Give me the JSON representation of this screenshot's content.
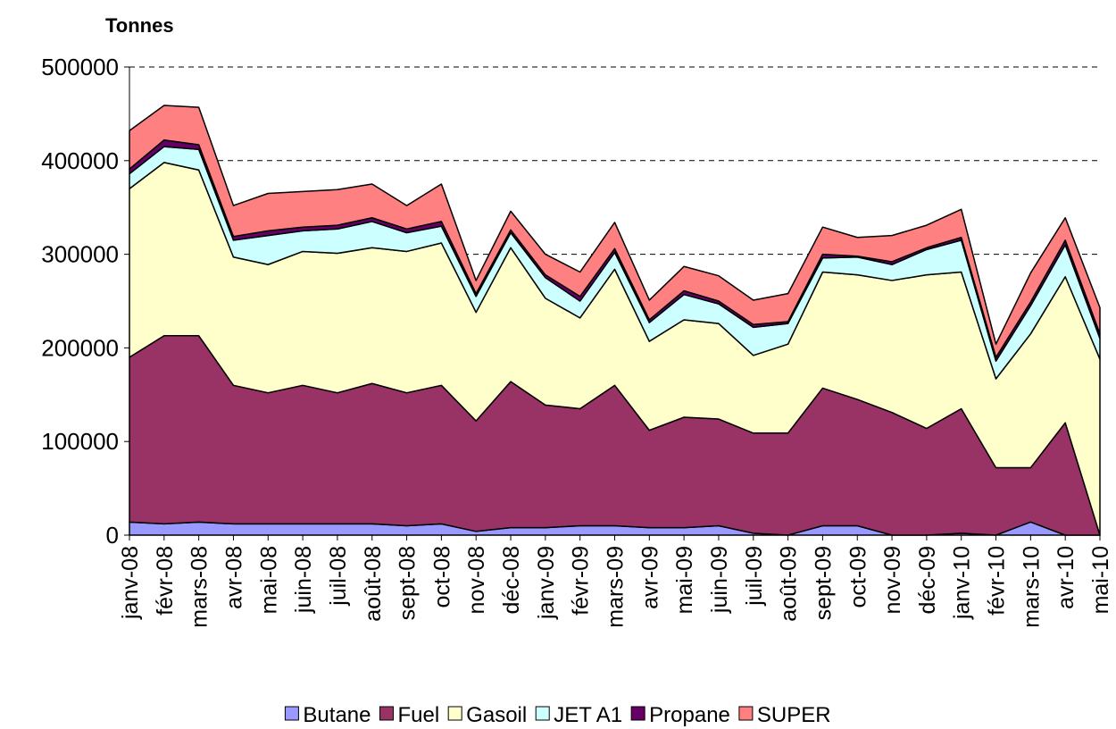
{
  "chart_data": {
    "type": "stacked_area",
    "title": "Tonnes",
    "categories": [
      "janv-08",
      "févr-08",
      "mars-08",
      "avr-08",
      "mai-08",
      "juin-08",
      "juil-08",
      "août-08",
      "sept-08",
      "oct-08",
      "nov-08",
      "déc-08",
      "janv-09",
      "févr-09",
      "mars-09",
      "avr-09",
      "mai-09",
      "juin-09",
      "juil-09",
      "août-09",
      "sept-09",
      "oct-09",
      "nov-09",
      "déc-09",
      "janv-10",
      "févr-10",
      "mars-10",
      "avr-10",
      "mai-10"
    ],
    "series": [
      {
        "name": "Butane",
        "color": "#9999ff",
        "values": [
          14000,
          12000,
          14000,
          12000,
          12000,
          12000,
          12000,
          12000,
          10000,
          12000,
          4000,
          8000,
          8000,
          10000,
          10000,
          8000,
          8000,
          10000,
          2000,
          0,
          10000,
          10000,
          0,
          0,
          2000,
          0,
          14000,
          0,
          0
        ]
      },
      {
        "name": "Fuel",
        "color": "#993366",
        "values": [
          176000,
          201000,
          199000,
          148000,
          140000,
          148000,
          140000,
          150000,
          142000,
          148000,
          118000,
          156000,
          131000,
          125000,
          150000,
          104000,
          118000,
          114000,
          107000,
          109000,
          147000,
          135000,
          131000,
          114000,
          133000,
          72000,
          58000,
          120000,
          0
        ]
      },
      {
        "name": "Gasoil",
        "color": "#ffffcc",
        "values": [
          180000,
          185000,
          177000,
          137000,
          137000,
          143000,
          149000,
          145000,
          151000,
          152000,
          116000,
          143000,
          114000,
          97000,
          124000,
          95000,
          104000,
          102000,
          83000,
          95000,
          124000,
          133000,
          141000,
          164000,
          146000,
          95000,
          143000,
          156000,
          188000
        ]
      },
      {
        "name": "JET A1",
        "color": "#ccffff",
        "values": [
          16000,
          17000,
          22000,
          18000,
          31000,
          22000,
          26000,
          28000,
          20000,
          18000,
          17000,
          16000,
          22000,
          18000,
          18000,
          20000,
          27000,
          21000,
          30000,
          22000,
          15000,
          19000,
          17000,
          27000,
          34000,
          19000,
          30000,
          34000,
          22000
        ]
      },
      {
        "name": "Propane",
        "color": "#660066",
        "values": [
          5000,
          7000,
          5000,
          4000,
          5000,
          4000,
          4000,
          4000,
          4000,
          5000,
          3000,
          3000,
          3000,
          5000,
          4000,
          3000,
          4000,
          3000,
          3000,
          2000,
          4000,
          1000,
          3000,
          2000,
          3000,
          4000,
          4000,
          5000,
          5000
        ]
      },
      {
        "name": "SUPER",
        "color": "#ff8080",
        "values": [
          41000,
          37000,
          40000,
          33000,
          40000,
          38000,
          38000,
          36000,
          25000,
          40000,
          14000,
          20000,
          22000,
          26000,
          28000,
          21000,
          26000,
          27000,
          26000,
          30000,
          29000,
          20000,
          28000,
          24000,
          30000,
          14000,
          31000,
          24000,
          28000
        ]
      }
    ],
    "ylim": [
      0,
      500000
    ],
    "yticks": [
      0,
      100000,
      200000,
      300000,
      400000,
      500000
    ],
    "grid": true,
    "legend": "bottom"
  }
}
